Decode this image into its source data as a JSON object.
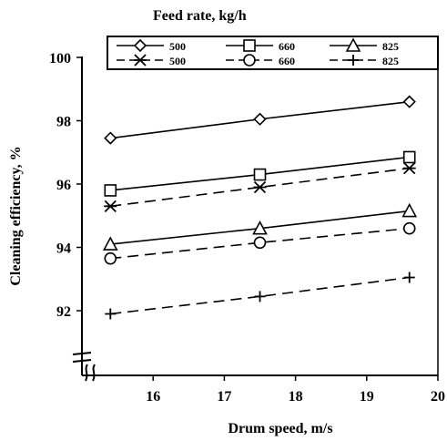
{
  "chart_data": {
    "type": "line",
    "title": "Feed rate, kg/h",
    "xlabel": "Drum speed, m/s",
    "ylabel": "Cleaning efficiency, %",
    "xlim": [
      15,
      20
    ],
    "ylim": [
      92,
      100
    ],
    "xticks": [
      16,
      17,
      18,
      19,
      20
    ],
    "yticks": [
      92,
      94,
      96,
      98,
      100
    ],
    "x": [
      15.4,
      17.5,
      19.6
    ],
    "series": [
      {
        "name": "500",
        "marker": "diamond",
        "dash": "solid",
        "values": [
          97.45,
          98.05,
          98.6
        ]
      },
      {
        "name": "660",
        "marker": "square",
        "dash": "solid",
        "values": [
          95.8,
          96.3,
          96.85
        ]
      },
      {
        "name": "825",
        "marker": "triangle",
        "dash": "solid",
        "values": [
          94.1,
          94.6,
          95.15
        ]
      },
      {
        "name": "500",
        "marker": "asterisk",
        "dash": "dashed",
        "values": [
          95.3,
          95.9,
          96.5
        ]
      },
      {
        "name": "660",
        "marker": "circle",
        "dash": "dashed",
        "values": [
          93.65,
          94.15,
          94.6
        ]
      },
      {
        "name": "825",
        "marker": "plus",
        "dash": "dashed",
        "values": [
          91.9,
          92.45,
          93.05
        ]
      }
    ],
    "legend_position": "top"
  }
}
